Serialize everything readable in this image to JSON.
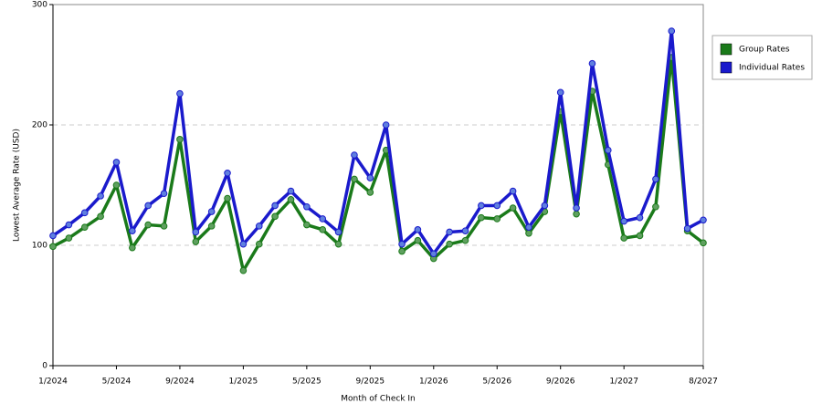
{
  "chart_data": {
    "type": "line",
    "x_label": "Month of Check In",
    "y_label": "Lowest Average Rate (USD)",
    "categories": [
      "1/2024",
      null,
      null,
      null,
      "5/2024",
      null,
      null,
      null,
      "9/2024",
      null,
      null,
      null,
      "1/2025",
      null,
      null,
      null,
      "5/2025",
      null,
      null,
      null,
      "9/2025",
      null,
      null,
      null,
      "1/2026",
      null,
      null,
      null,
      "5/2026",
      null,
      null,
      null,
      "9/2026",
      null,
      null,
      null,
      "1/2027",
      null,
      null,
      null,
      null,
      "8/2027"
    ],
    "series": [
      {
        "name": "Group Rates",
        "color": "#1a7a1a",
        "point_color": "#5fa05f",
        "values": [
          99,
          106,
          115,
          124,
          150,
          98,
          117,
          116,
          188,
          103,
          116,
          139,
          79,
          101,
          124,
          138,
          117,
          113,
          101,
          155,
          144,
          179,
          95,
          104,
          89,
          101,
          104,
          123,
          122,
          131,
          110,
          128,
          211,
          126,
          228,
          167,
          106,
          108,
          132,
          256,
          112,
          102
        ]
      },
      {
        "name": "Individual Rates",
        "color": "#1a1acc",
        "point_color": "#5f7fdf",
        "values": [
          108,
          117,
          127,
          141,
          169,
          112,
          133,
          143,
          226,
          111,
          128,
          160,
          101,
          116,
          133,
          145,
          132,
          122,
          111,
          175,
          156,
          200,
          101,
          113,
          93,
          111,
          112,
          133,
          133,
          145,
          115,
          133,
          227,
          131,
          251,
          179,
          120,
          123,
          155,
          278,
          114,
          121
        ]
      }
    ],
    "ylim": [
      0,
      300
    ],
    "yticks": [
      0,
      100,
      200,
      300
    ],
    "grid": true,
    "legend": "right"
  }
}
